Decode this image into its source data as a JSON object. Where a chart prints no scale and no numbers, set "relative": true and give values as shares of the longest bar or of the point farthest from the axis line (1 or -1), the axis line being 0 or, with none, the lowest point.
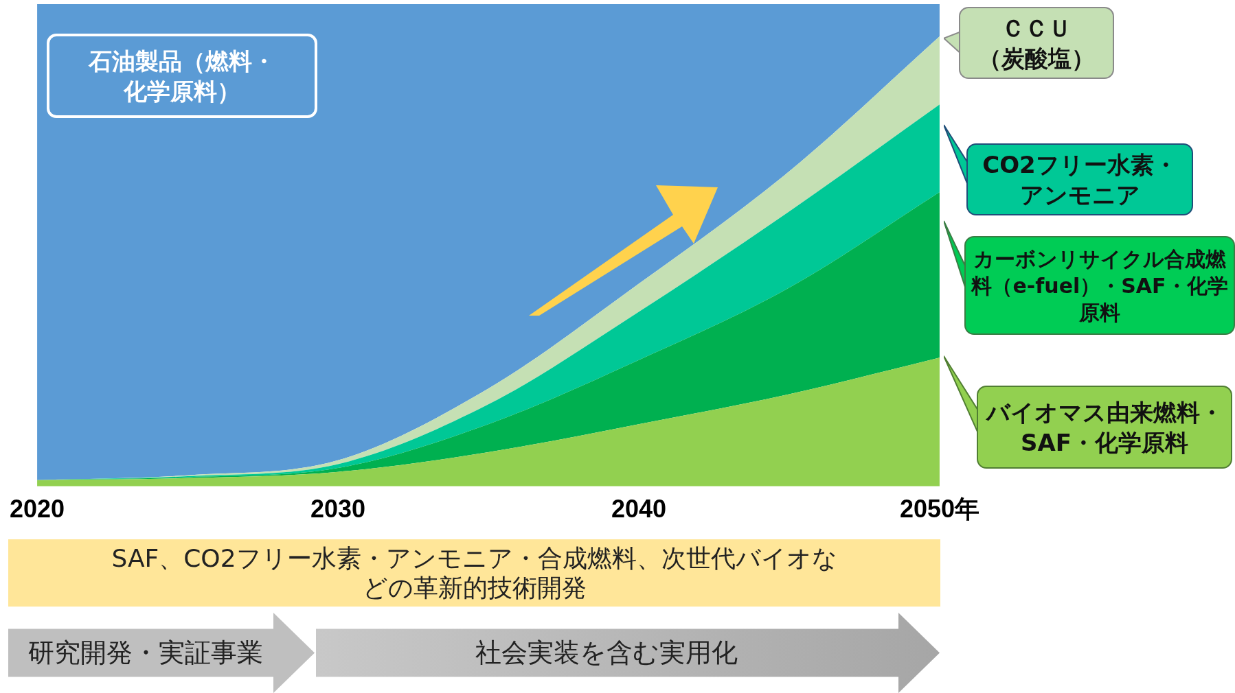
{
  "chart_data": {
    "type": "area",
    "stacked": true,
    "relative": true,
    "tick_labels": "x",
    "x": [
      2020,
      2025,
      2030,
      2035,
      2040,
      2045,
      2050
    ],
    "xlim": [
      2020,
      2050
    ],
    "xticks": [
      2020,
      2030,
      2040,
      {
        "value": 2050,
        "label": "2050年"
      }
    ],
    "series": [
      {
        "name": "バイオマス由来燃料・SAF・化学原料",
        "color": "#92d050",
        "values": [
          0.013,
          0.017,
          0.03,
          0.071,
          0.129,
          0.191,
          0.267
        ]
      },
      {
        "name": "カーボンリサイクル合成燃料（e-fuel）・SAF・化学原料",
        "color": "#00b050",
        "values": [
          0,
          0.002,
          0.008,
          0.058,
          0.133,
          0.221,
          0.343
        ]
      },
      {
        "name": "CO2フリー水素・アンモニア",
        "color": "#00c896",
        "values": [
          0,
          0.002,
          0.008,
          0.041,
          0.1,
          0.158,
          0.182
        ]
      },
      {
        "name": "ＣＣＵ（炭酸塩）",
        "color": "#c5e0b4",
        "values": [
          0,
          0.002,
          0.008,
          0.033,
          0.058,
          0.083,
          0.141
        ]
      },
      {
        "name": "石油製品（燃料・化学原料）",
        "color": "#5b9bd5",
        "values": [
          0.987,
          0.977,
          0.946,
          0.797,
          0.58,
          0.347,
          0.067
        ]
      }
    ],
    "annotations": [
      "SAF、CO2フリー水素・アンモニア・合成燃料、次世代バイオなどの革新的技術開発",
      "研究開発・実証事業",
      "社会実装を含む実用化"
    ]
  }
}
